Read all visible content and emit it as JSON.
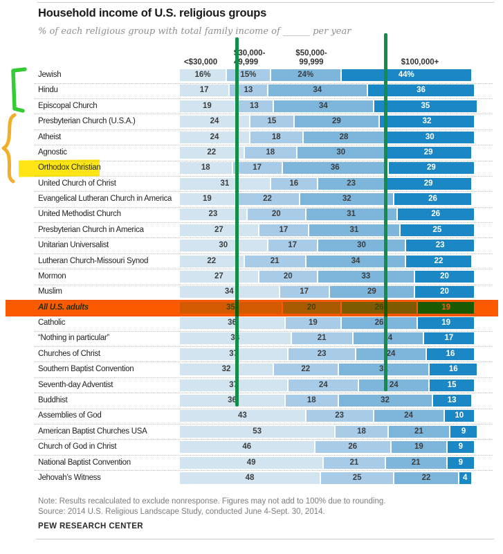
{
  "title": "Household income of U.S. religious groups",
  "subtitle": "% of each religious group with total family income of ______ per year",
  "columns": [
    {
      "lines": [
        "<$30,000",
        ""
      ]
    },
    {
      "lines": [
        "$30,000-",
        "49,999"
      ]
    },
    {
      "lines": [
        "$50,000-",
        "99,999"
      ]
    },
    {
      "lines": [
        "$100,000+",
        ""
      ]
    }
  ],
  "chart_data": {
    "type": "bar",
    "stacked": true,
    "orientation": "horizontal",
    "unit": "%",
    "xlim": [
      0,
      100
    ],
    "grid": false,
    "first_row_value_suffix": "%",
    "categories": [
      "Jewish",
      "Hindu",
      "Episcopal Church",
      "Presbyterian Church (U.S.A.)",
      "Atheist",
      "Agnostic",
      "Orthodox Christian",
      "United Church of Christ",
      "Evangelical Lutheran Church in America",
      "United Methodist Church",
      "Presbyterian Church in America",
      "Unitarian Universalist",
      "Lutheran Church-Missouri Synod",
      "Mormon",
      "Muslim",
      "All U.S. adults",
      "Catholic",
      "“Nothing in particular”",
      "Churches of Christ",
      "Southern Baptist Convention",
      "Seventh-day Adventist",
      "Buddhist",
      "Assemblies of God",
      "American Baptist Churches USA",
      "Church of God in Christ",
      "National Baptist Convention",
      "Jehovah’s Witness"
    ],
    "series": [
      {
        "name": "<$30,000",
        "values": [
          16,
          17,
          19,
          24,
          24,
          22,
          18,
          31,
          19,
          23,
          27,
          30,
          22,
          27,
          34,
          35,
          36,
          38,
          37,
          32,
          37,
          36,
          43,
          53,
          46,
          49,
          48
        ]
      },
      {
        "name": "$30,000-49,999",
        "values": [
          15,
          13,
          13,
          15,
          18,
          18,
          17,
          16,
          22,
          20,
          17,
          17,
          21,
          20,
          17,
          20,
          19,
          21,
          23,
          22,
          24,
          18,
          23,
          18,
          26,
          21,
          25
        ]
      },
      {
        "name": "$50,000-99,999",
        "values": [
          24,
          34,
          34,
          29,
          28,
          30,
          36,
          23,
          32,
          31,
          31,
          30,
          34,
          33,
          29,
          26,
          26,
          24,
          24,
          31,
          24,
          32,
          24,
          21,
          19,
          21,
          22
        ]
      },
      {
        "name": "$100,000+",
        "values": [
          44,
          36,
          35,
          32,
          30,
          29,
          29,
          29,
          26,
          26,
          25,
          23,
          22,
          20,
          20,
          19,
          19,
          17,
          16,
          16,
          15,
          13,
          10,
          9,
          9,
          9,
          4
        ]
      }
    ]
  },
  "colors": {
    "segments": [
      "#d3e4f1",
      "#a8cce7",
      "#7eb6db",
      "#1b87c5"
    ],
    "segment_text_dark": "#3d3d3d",
    "segment_text_light": "#ffffff"
  },
  "annotations": {
    "green_bracket": {
      "target_rows": [
        "Jewish",
        "Hindu",
        "Episcopal Church"
      ],
      "color": "#35cb35"
    },
    "orange_brace": {
      "target_rows": [
        "Presbyterian Church (U.S.A.)",
        "Atheist",
        "Agnostic",
        "Orthodox Christian"
      ],
      "color": "#f1ae2b"
    },
    "yellow_highlight": {
      "target": "Orthodox Christian",
      "color": "#ffe515"
    },
    "green_line_1": {
      "x_percent": 18.8,
      "color": "#148c4a"
    },
    "green_line_2": {
      "x_percent": 69.5,
      "color": "#148c4a"
    },
    "orange_row_band": {
      "target": "All U.S. adults",
      "color": "#fb5a00"
    }
  },
  "footer": {
    "note": "Note: Results recalculated to exclude nonresponse. Figures may not add to 100% due to rounding.",
    "source": "Source: 2014 U.S. Religious Landscape Study, conducted June 4-Sept. 30, 2014.",
    "brand": "PEW RESEARCH CENTER"
  }
}
